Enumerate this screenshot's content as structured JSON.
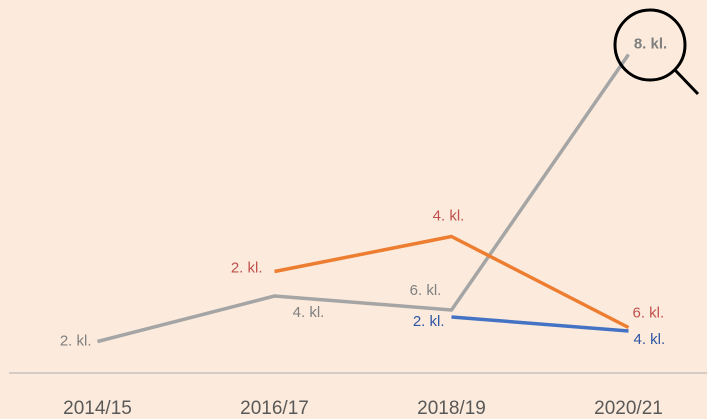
{
  "chart_data": {
    "type": "line",
    "categories": [
      "2014/15",
      "2016/17",
      "2018/19",
      "2020/21"
    ],
    "ylim": [
      0,
      100
    ],
    "series": [
      {
        "color": "#a5a5a5",
        "label_color": "#7f7f7f",
        "values": [
          9,
          22,
          18,
          91
        ],
        "labels": [
          "2. kl.",
          "4. kl.",
          "6. kl.",
          "8. kl."
        ]
      },
      {
        "color": "#ed7d31",
        "label_color": "#c0504d",
        "values": [
          null,
          29,
          39,
          13
        ],
        "labels": [
          null,
          "2. kl.",
          "4. kl.",
          "6. kl."
        ]
      },
      {
        "color": "#4472c4",
        "label_color": "#2f55a4",
        "values": [
          null,
          null,
          16,
          12
        ],
        "labels": [
          null,
          null,
          "2. kl.",
          "4. kl."
        ]
      }
    ]
  }
}
